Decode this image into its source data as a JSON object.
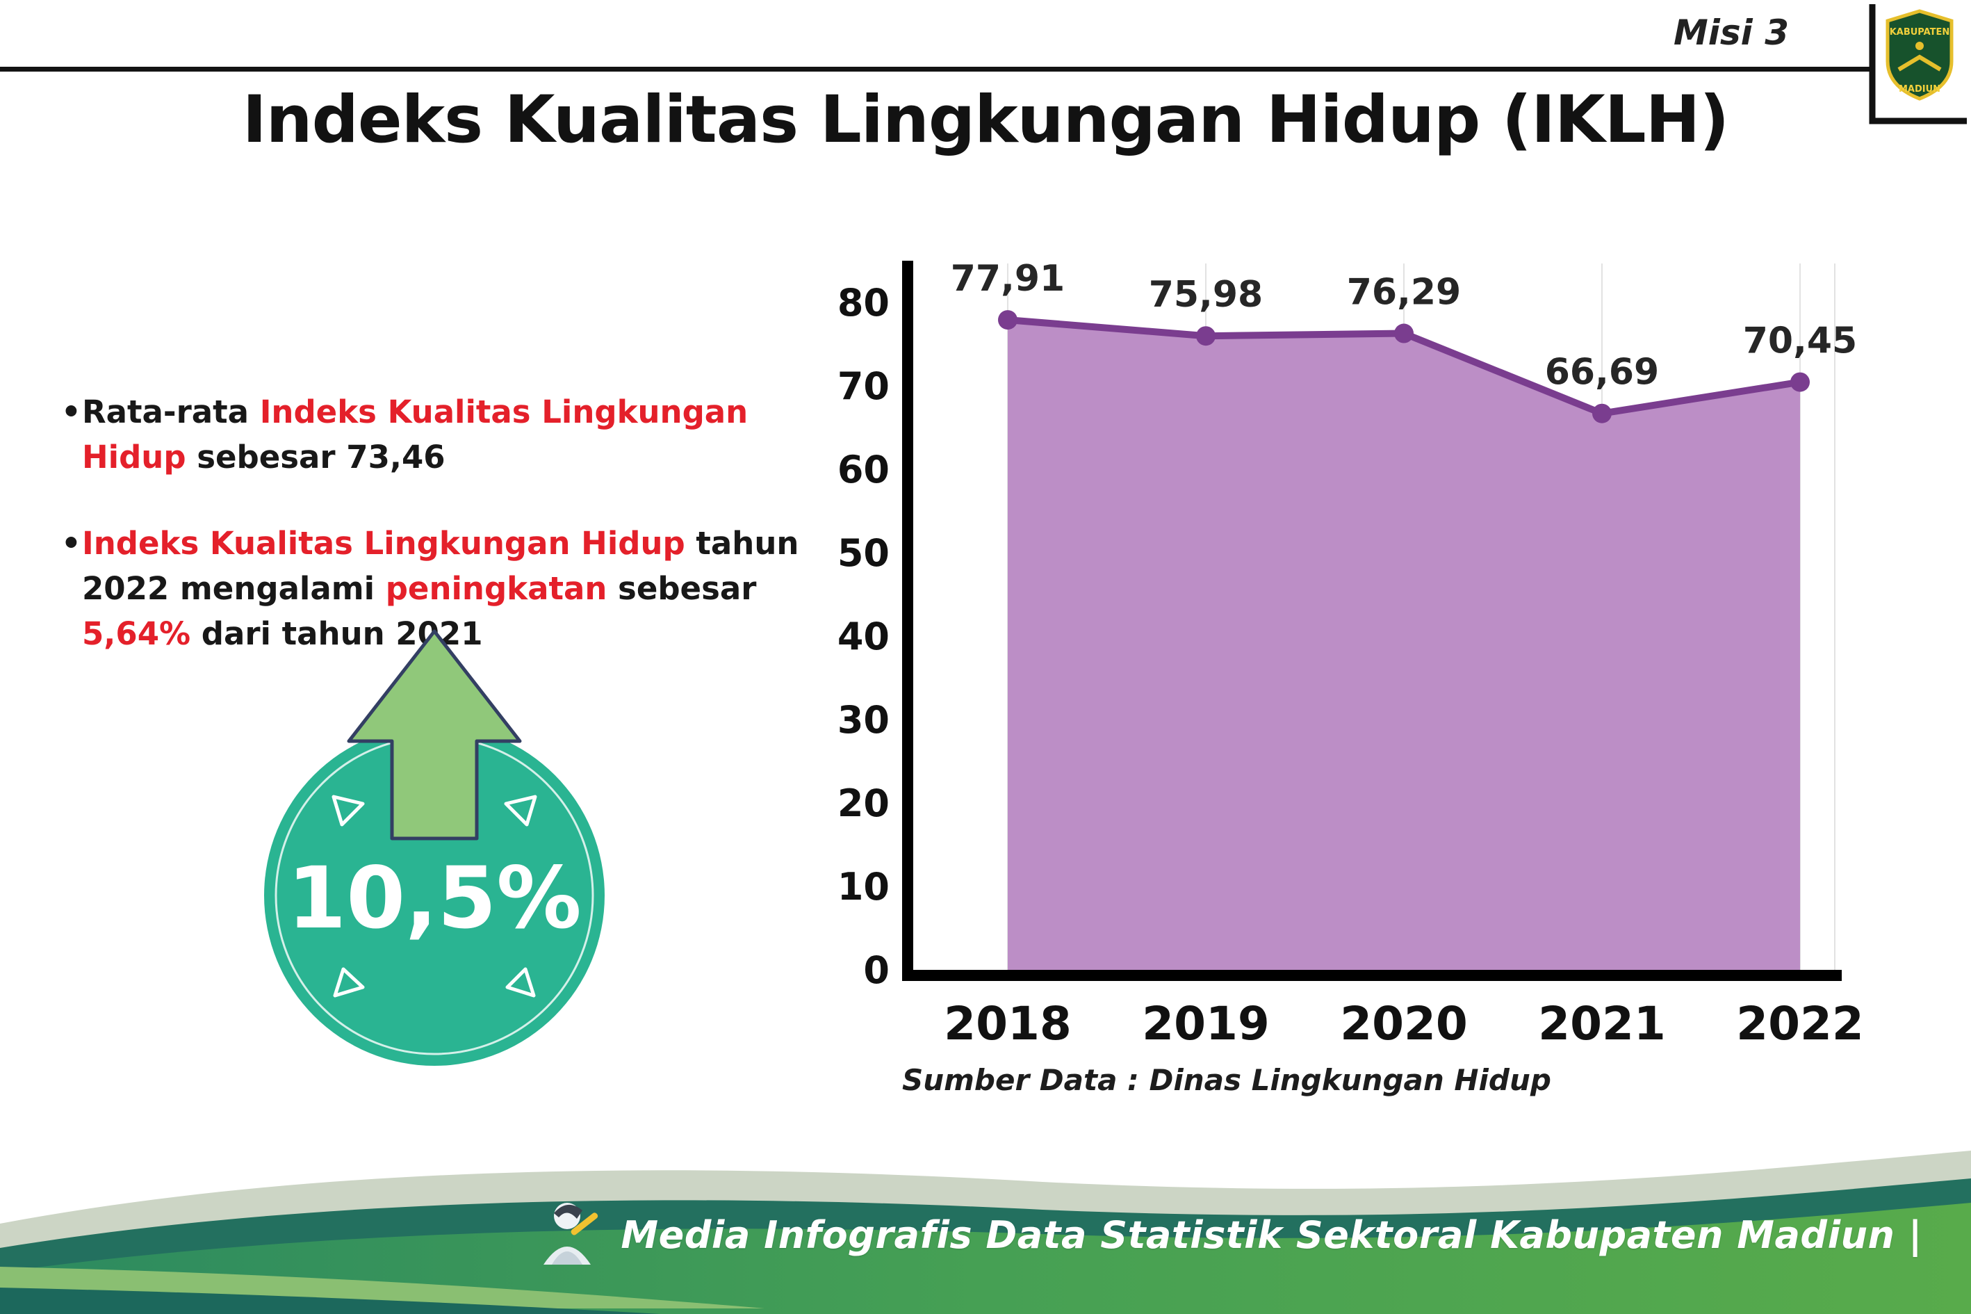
{
  "page": {
    "misi_label": "Misi 3",
    "title": "Indeks Kualitas Lingkungan Hidup (IKLH)"
  },
  "bullets": [
    {
      "parts": [
        {
          "text": "Rata-rata ",
          "style": "normal"
        },
        {
          "text": "Indeks Kualitas Lingkungan Hidup",
          "style": "red"
        },
        {
          "text": " sebesar 73,46",
          "style": "normal"
        }
      ]
    },
    {
      "parts": [
        {
          "text": "Indeks Kualitas Lingkungan Hidup",
          "style": "red"
        },
        {
          "text": " tahun 2022 mengalami ",
          "style": "normal"
        },
        {
          "text": "peningkatan",
          "style": "red"
        },
        {
          "text": " sebesar ",
          "style": "normal"
        },
        {
          "text": "5,64%",
          "style": "red"
        },
        {
          "text": " dari tahun 2021",
          "style": "normal"
        }
      ]
    }
  ],
  "badge": {
    "value": "10,5%",
    "circle_color": "#2ab492",
    "arrow_color": "#90c87a"
  },
  "chart_data": {
    "type": "area",
    "title": "",
    "xlabel": "",
    "ylabel": "",
    "categories": [
      "2018",
      "2019",
      "2020",
      "2021",
      "2022"
    ],
    "values": [
      77.91,
      75.98,
      76.29,
      66.69,
      70.45
    ],
    "value_labels": [
      "77,91",
      "75,98",
      "76,29",
      "66,69",
      "70,45"
    ],
    "ylim": [
      0,
      80
    ],
    "yticks": [
      0,
      10,
      20,
      30,
      40,
      50,
      60,
      70,
      80
    ],
    "grid": "faint-vertical",
    "legend_position": "none",
    "line_color": "#7a3d8f",
    "fill_color": "#bc8ec6",
    "grid_color": "#e2e2e2",
    "axis_color": "#000000",
    "source": "Sumber Data : Dinas Lingkungan Hidup"
  },
  "footer": {
    "text": "Media Infografis Data Statistik Sektoral Kabupaten Madiun |"
  },
  "logo": {
    "top_text": "KABUPATEN",
    "bottom_text": "MADIUN"
  }
}
